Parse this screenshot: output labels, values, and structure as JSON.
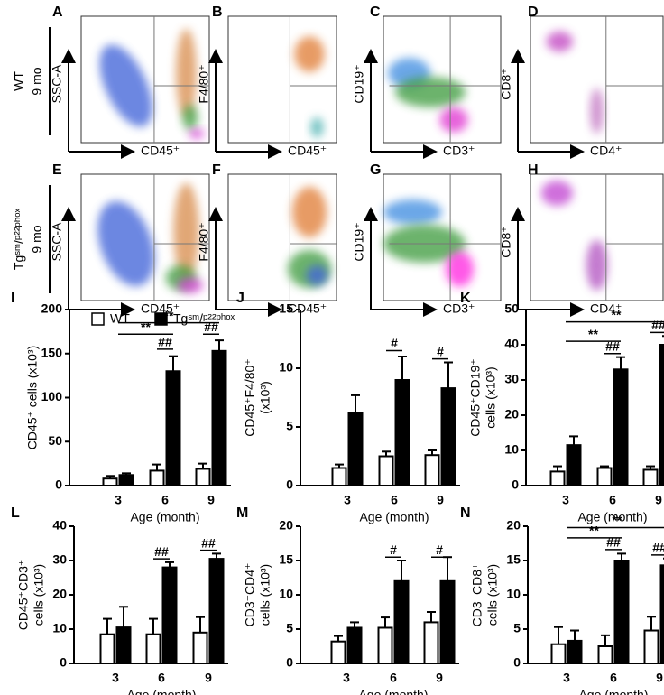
{
  "rows": [
    {
      "lines": [
        "WT",
        "9 mo"
      ]
    },
    {
      "lines": [
        "Tgˢᵐ/ᵖ²²ᵖʰᵒˣ",
        "9 mo"
      ]
    }
  ],
  "flow_panels": [
    {
      "panel": "A",
      "y_label": "SSC-A",
      "x_label": "CD45⁺"
    },
    {
      "panel": "B",
      "y_label": "F4/80⁺",
      "x_label": "CD45⁺"
    },
    {
      "panel": "C",
      "y_label": "CD19⁺",
      "x_label": "CD3⁺"
    },
    {
      "panel": "D",
      "y_label": "CD8⁺",
      "x_label": "CD4⁺"
    },
    {
      "panel": "E",
      "y_label": "SSC-A",
      "x_label": "CD45⁺"
    },
    {
      "panel": "F",
      "y_label": "F4/80⁺",
      "x_label": "CD45⁺"
    },
    {
      "panel": "G",
      "y_label": "CD19⁺",
      "x_label": "CD3⁺"
    },
    {
      "panel": "H",
      "y_label": "CD8⁺",
      "x_label": "CD4⁺"
    }
  ],
  "chart_data": [
    {
      "type": "bar",
      "panel": "I",
      "ylabel": [
        "CD45⁺ cells (x10³)"
      ],
      "xlabel": "Age (month)",
      "categories": [
        "3",
        "6",
        "9"
      ],
      "ylim": [
        0,
        200
      ],
      "yticks": [
        0,
        50,
        100,
        150,
        200
      ],
      "series": [
        {
          "name": "WT",
          "color": "#ffffff",
          "values": [
            8,
            17,
            19
          ],
          "errors": [
            3,
            7,
            6
          ]
        },
        {
          "name": "Tgˢᵐ/ᵖ²²ᵖʰᵒˣ",
          "color": "#000000",
          "values": [
            12,
            130,
            153
          ],
          "errors": [
            2,
            17,
            12
          ]
        }
      ],
      "annotations": [
        {
          "text": "**",
          "from": "3",
          "to": "6",
          "y": 172
        },
        {
          "text": "**",
          "from": "3",
          "to": "9",
          "y": 185
        },
        {
          "text": "##",
          "category": "6",
          "y": 155
        },
        {
          "text": "##",
          "category": "9",
          "y": 172
        }
      ]
    },
    {
      "type": "bar",
      "panel": "J",
      "ylabel": [
        "CD45⁺F4/80⁺",
        "(x10³)"
      ],
      "xlabel": "Age (month)",
      "categories": [
        "3",
        "6",
        "9"
      ],
      "ylim": [
        0,
        15
      ],
      "yticks": [
        0,
        5,
        10,
        15
      ],
      "series": [
        {
          "color": "#ffffff",
          "values": [
            1.5,
            2.5,
            2.6
          ],
          "errors": [
            0.3,
            0.4,
            0.4
          ]
        },
        {
          "color": "#000000",
          "values": [
            6.2,
            9.0,
            8.3
          ],
          "errors": [
            1.5,
            2.0,
            2.2
          ]
        }
      ],
      "annotations": [
        {
          "text": "#",
          "category": "6",
          "y": 11.5
        },
        {
          "text": "#",
          "category": "9",
          "y": 10.8
        }
      ]
    },
    {
      "type": "bar",
      "panel": "K",
      "ylabel": [
        "CD45⁺CD19⁺",
        "cells (x10³)"
      ],
      "xlabel": "Age (month)",
      "categories": [
        "3",
        "6",
        "9"
      ],
      "ylim": [
        0,
        50
      ],
      "yticks": [
        0,
        10,
        20,
        30,
        40,
        50
      ],
      "series": [
        {
          "color": "#ffffff",
          "values": [
            4,
            5,
            4.5
          ],
          "errors": [
            1.5,
            0.5,
            1
          ]
        },
        {
          "color": "#000000",
          "values": [
            11.5,
            33,
            40
          ],
          "errors": [
            2.5,
            3.5,
            2.5
          ]
        }
      ],
      "annotations": [
        {
          "text": "**",
          "from": "3",
          "to": "6",
          "y": 41
        },
        {
          "text": "**",
          "from": "3",
          "to": "9",
          "y": 46.5
        },
        {
          "text": "##",
          "category": "6",
          "y": 37.5
        },
        {
          "text": "##",
          "category": "9",
          "y": 43.5
        }
      ]
    },
    {
      "type": "bar",
      "panel": "L",
      "ylabel": [
        "CD45⁺CD3⁺",
        "cells (x10³)"
      ],
      "xlabel": "Age (month)",
      "categories": [
        "3",
        "6",
        "9"
      ],
      "ylim": [
        0,
        40
      ],
      "yticks": [
        0,
        10,
        20,
        30,
        40
      ],
      "series": [
        {
          "color": "#ffffff",
          "values": [
            8.5,
            8.5,
            9
          ],
          "errors": [
            4.5,
            4.5,
            4.5
          ]
        },
        {
          "color": "#000000",
          "values": [
            10.5,
            28,
            30.5
          ],
          "errors": [
            6,
            1.5,
            1.5
          ]
        }
      ],
      "annotations": [
        {
          "text": "##",
          "category": "6",
          "y": 30.5
        },
        {
          "text": "##",
          "category": "9",
          "y": 33
        }
      ]
    },
    {
      "type": "bar",
      "panel": "M",
      "ylabel": [
        "CD3⁺CD4⁺",
        "cells (x10³)"
      ],
      "xlabel": "Age (month)",
      "categories": [
        "3",
        "6",
        "9"
      ],
      "ylim": [
        0,
        20
      ],
      "yticks": [
        0,
        5,
        10,
        15,
        20
      ],
      "series": [
        {
          "color": "#ffffff",
          "values": [
            3.2,
            5.2,
            6
          ],
          "errors": [
            0.8,
            1.5,
            1.5
          ]
        },
        {
          "color": "#000000",
          "values": [
            5.2,
            12,
            12
          ],
          "errors": [
            0.8,
            3,
            3.5
          ]
        }
      ],
      "annotations": [
        {
          "text": "#",
          "category": "6",
          "y": 15.5
        },
        {
          "text": "#",
          "category": "9",
          "y": 15.5
        }
      ]
    },
    {
      "type": "bar",
      "panel": "N",
      "ylabel": [
        "CD3⁺CD8⁺",
        "cells (x10³)"
      ],
      "xlabel": "Age (month)",
      "categories": [
        "3",
        "6",
        "9"
      ],
      "ylim": [
        0,
        20
      ],
      "yticks": [
        0,
        5,
        10,
        15,
        20
      ],
      "series": [
        {
          "color": "#ffffff",
          "values": [
            2.8,
            2.5,
            4.8
          ],
          "errors": [
            2.5,
            1.6,
            2
          ]
        },
        {
          "color": "#000000",
          "values": [
            3.3,
            15,
            14.3
          ],
          "errors": [
            1.5,
            1,
            1
          ]
        }
      ],
      "annotations": [
        {
          "text": "**",
          "from": "3",
          "to": "6",
          "y": 18.3
        },
        {
          "text": "**",
          "from": "3",
          "to": "9",
          "y": 19.8
        },
        {
          "text": "##",
          "category": "6",
          "y": 16.6
        },
        {
          "text": "##",
          "category": "9",
          "y": 15.8
        }
      ]
    }
  ]
}
